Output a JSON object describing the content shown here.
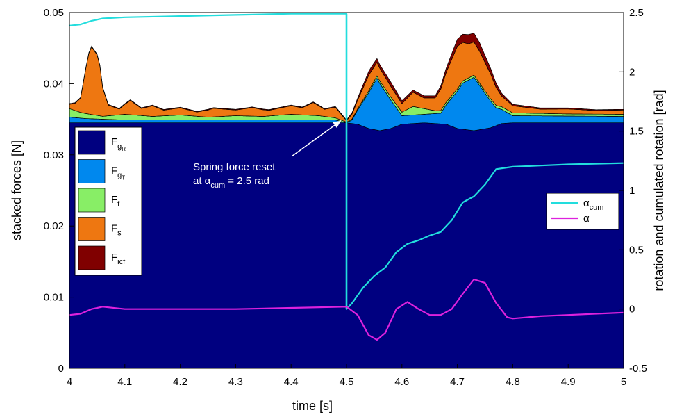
{
  "chart_data": {
    "type": "area",
    "xlabel": "time [s]",
    "ylabel_left": "stacked forces [N]",
    "ylabel_right": "rotation and cumulated rotation [rad]",
    "xlim": [
      4,
      5
    ],
    "ylim_left": [
      0,
      0.05
    ],
    "ylim_right": [
      -0.5,
      2.5
    ],
    "x_ticks": [
      "4",
      "4.1",
      "4.2",
      "4.3",
      "4.4",
      "4.5",
      "4.6",
      "4.7",
      "4.8",
      "4.9",
      "5"
    ],
    "y_ticks_left": [
      "0",
      "0.01",
      "0.02",
      "0.03",
      "0.04",
      "0.05"
    ],
    "y_ticks_right": [
      "-0.5",
      "0",
      "0.5",
      "1",
      "1.5",
      "2",
      "2.5"
    ],
    "grid": false,
    "annotation": {
      "line1": "Spring force reset",
      "line2_prefix": "at α",
      "line2_sub": "cum",
      "line2_suffix": " = 2.5 rad",
      "target": [
        4.5,
        0.035
      ]
    },
    "stacked_series": [
      {
        "name": "F",
        "sub": "g",
        "subsub": "R",
        "color": "#000080",
        "x": [
          4,
          4.5,
          4.52,
          4.54,
          4.56,
          4.58,
          4.6,
          4.64,
          4.68,
          4.7,
          4.73,
          4.76,
          4.78,
          4.8,
          5
        ],
        "values": [
          0.0345,
          0.0345,
          0.0343,
          0.0337,
          0.0334,
          0.0337,
          0.0343,
          0.0345,
          0.0343,
          0.0337,
          0.0334,
          0.0338,
          0.0344,
          0.0345,
          0.0345
        ]
      },
      {
        "name": "F",
        "sub": "g",
        "subsub": "T",
        "color": "#0088ee",
        "x": [
          4,
          4.03,
          4.1,
          4.2,
          4.3,
          4.4,
          4.48,
          4.5,
          4.51,
          4.53,
          4.555,
          4.58,
          4.6,
          4.64,
          4.67,
          4.69,
          4.71,
          4.73,
          4.75,
          4.77,
          4.8,
          5
        ],
        "values": [
          0.0008,
          0.0006,
          0.0004,
          0.0004,
          0.0004,
          0.0004,
          0.0004,
          0,
          0.0005,
          0.0035,
          0.0073,
          0.004,
          0.0012,
          0.0012,
          0.0015,
          0.004,
          0.0065,
          0.0075,
          0.005,
          0.0025,
          0.001,
          0.0009
        ]
      },
      {
        "name": "F",
        "sub": "f",
        "subsub": "",
        "color": "#88ee66",
        "x": [
          4,
          4.02,
          4.06,
          4.1,
          4.15,
          4.2,
          4.25,
          4.3,
          4.35,
          4.4,
          4.45,
          4.5,
          4.55,
          4.6,
          4.62,
          4.66,
          4.7,
          4.75,
          4.8,
          4.9,
          5
        ],
        "values": [
          0.0012,
          0.0008,
          0.0004,
          0.0008,
          0.0005,
          0.0007,
          0.0004,
          0.0006,
          0.0005,
          0.0008,
          0.0006,
          0.0001,
          0.0003,
          0.0005,
          0.0012,
          0.0004,
          0.0003,
          0.0003,
          0.0004,
          0.0003,
          0.0003
        ]
      },
      {
        "name": "F",
        "sub": "s",
        "subsub": "",
        "color": "#ee7711",
        "x": [
          4,
          4.01,
          4.02,
          4.03,
          4.035,
          4.04,
          4.045,
          4.05,
          4.055,
          4.06,
          4.07,
          4.09,
          4.11,
          4.13,
          4.15,
          4.17,
          4.2,
          4.23,
          4.26,
          4.3,
          4.33,
          4.36,
          4.4,
          4.42,
          4.44,
          4.46,
          4.48,
          4.5,
          4.52,
          4.54,
          4.56,
          4.58,
          4.6,
          4.62,
          4.64,
          4.66,
          4.68,
          4.7,
          4.72,
          4.74,
          4.76,
          4.78,
          4.8,
          4.85,
          4.9,
          4.95,
          5
        ],
        "values": [
          0.0006,
          0.001,
          0.002,
          0.0065,
          0.0085,
          0.0095,
          0.009,
          0.0085,
          0.007,
          0.004,
          0.0015,
          0.0008,
          0.002,
          0.001,
          0.0015,
          0.0008,
          0.001,
          0.0006,
          0.0012,
          0.0008,
          0.0012,
          0.0008,
          0.0012,
          0.001,
          0.0018,
          0.001,
          0.0015,
          0.0002,
          0.0012,
          0.0022,
          0.0018,
          0.0015,
          0.0012,
          0.002,
          0.0015,
          0.0018,
          0.0042,
          0.006,
          0.0048,
          0.0045,
          0.0035,
          0.0015,
          0.001,
          0.0006,
          0.0007,
          0.0005,
          0.0006
        ]
      },
      {
        "name": "F",
        "sub": "icf",
        "subsub": "",
        "color": "#800000",
        "x": [
          4,
          4.5,
          4.52,
          4.545,
          4.56,
          4.58,
          4.6,
          4.62,
          4.66,
          4.68,
          4.7,
          4.72,
          4.74,
          4.76,
          4.78,
          4.8,
          5
        ],
        "values": [
          0.0001,
          0.0001,
          0.0003,
          0.0006,
          0.0005,
          0.0006,
          0.0004,
          0.0003,
          0.0003,
          0.0006,
          0.001,
          0.0013,
          0.0012,
          0.0008,
          0.0004,
          0.0002,
          0.0001
        ]
      }
    ],
    "line_series": [
      {
        "name": "α",
        "sub": "cum",
        "color": "#22dddd",
        "axis": "right",
        "x": [
          4,
          4.02,
          4.04,
          4.06,
          4.1,
          4.2,
          4.3,
          4.4,
          4.5,
          4.5,
          4.51,
          4.53,
          4.55,
          4.57,
          4.59,
          4.61,
          4.63,
          4.65,
          4.67,
          4.69,
          4.71,
          4.73,
          4.75,
          4.77,
          4.8,
          4.85,
          4.9,
          5
        ],
        "values": [
          2.39,
          2.4,
          2.43,
          2.45,
          2.46,
          2.47,
          2.48,
          2.49,
          2.49,
          0.0,
          0.05,
          0.18,
          0.28,
          0.35,
          0.48,
          0.55,
          0.58,
          0.62,
          0.65,
          0.75,
          0.9,
          0.95,
          1.05,
          1.18,
          1.2,
          1.21,
          1.22,
          1.23
        ]
      },
      {
        "name": "α",
        "sub": "",
        "color": "#dd22dd",
        "axis": "right",
        "x": [
          4,
          4.02,
          4.04,
          4.06,
          4.1,
          4.2,
          4.3,
          4.4,
          4.5,
          4.52,
          4.54,
          4.555,
          4.57,
          4.59,
          4.61,
          4.63,
          4.65,
          4.67,
          4.69,
          4.71,
          4.73,
          4.75,
          4.77,
          4.79,
          4.8,
          4.85,
          4.9,
          5
        ],
        "values": [
          -0.05,
          -0.04,
          0.0,
          0.02,
          0.0,
          0.0,
          0.0,
          0.01,
          0.02,
          -0.05,
          -0.22,
          -0.26,
          -0.2,
          0.0,
          0.06,
          0.0,
          -0.05,
          -0.05,
          0.0,
          0.13,
          0.25,
          0.22,
          0.05,
          -0.07,
          -0.08,
          -0.06,
          -0.05,
          -0.03
        ]
      }
    ]
  }
}
